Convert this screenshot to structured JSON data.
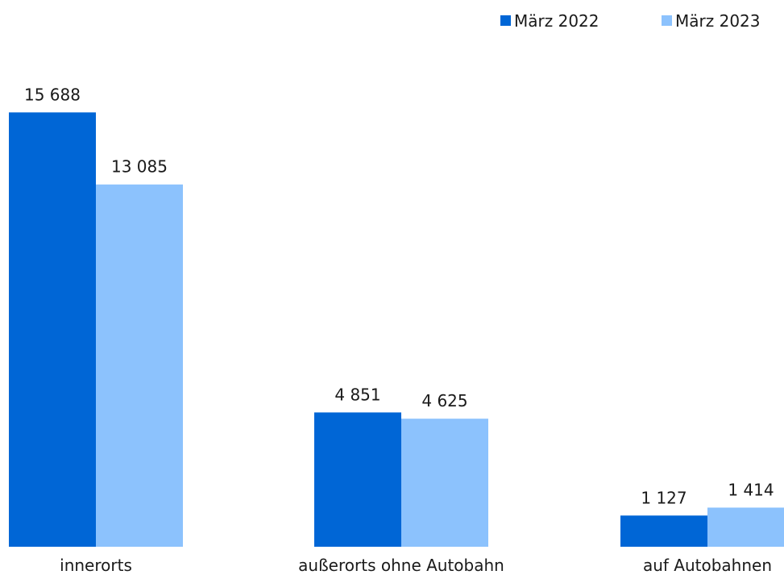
{
  "chart_data": {
    "type": "bar",
    "title": "",
    "xlabel": "",
    "ylabel": "",
    "categories": [
      "innerorts",
      "außerorts ohne Autobahn",
      "auf Autobahnen"
    ],
    "series": [
      {
        "name": "März 2022",
        "color": "#0066d6",
        "values": [
          15688,
          4851,
          1127
        ],
        "labels": [
          "15 688",
          "4 851",
          "1 127"
        ]
      },
      {
        "name": "März 2023",
        "color": "#8cc2fd",
        "values": [
          13085,
          4625,
          1414
        ],
        "labels": [
          "13 085",
          "4 625",
          "1 414"
        ]
      }
    ],
    "ylim": [
      0,
      18000
    ],
    "grid": false,
    "legend": "top-right"
  }
}
